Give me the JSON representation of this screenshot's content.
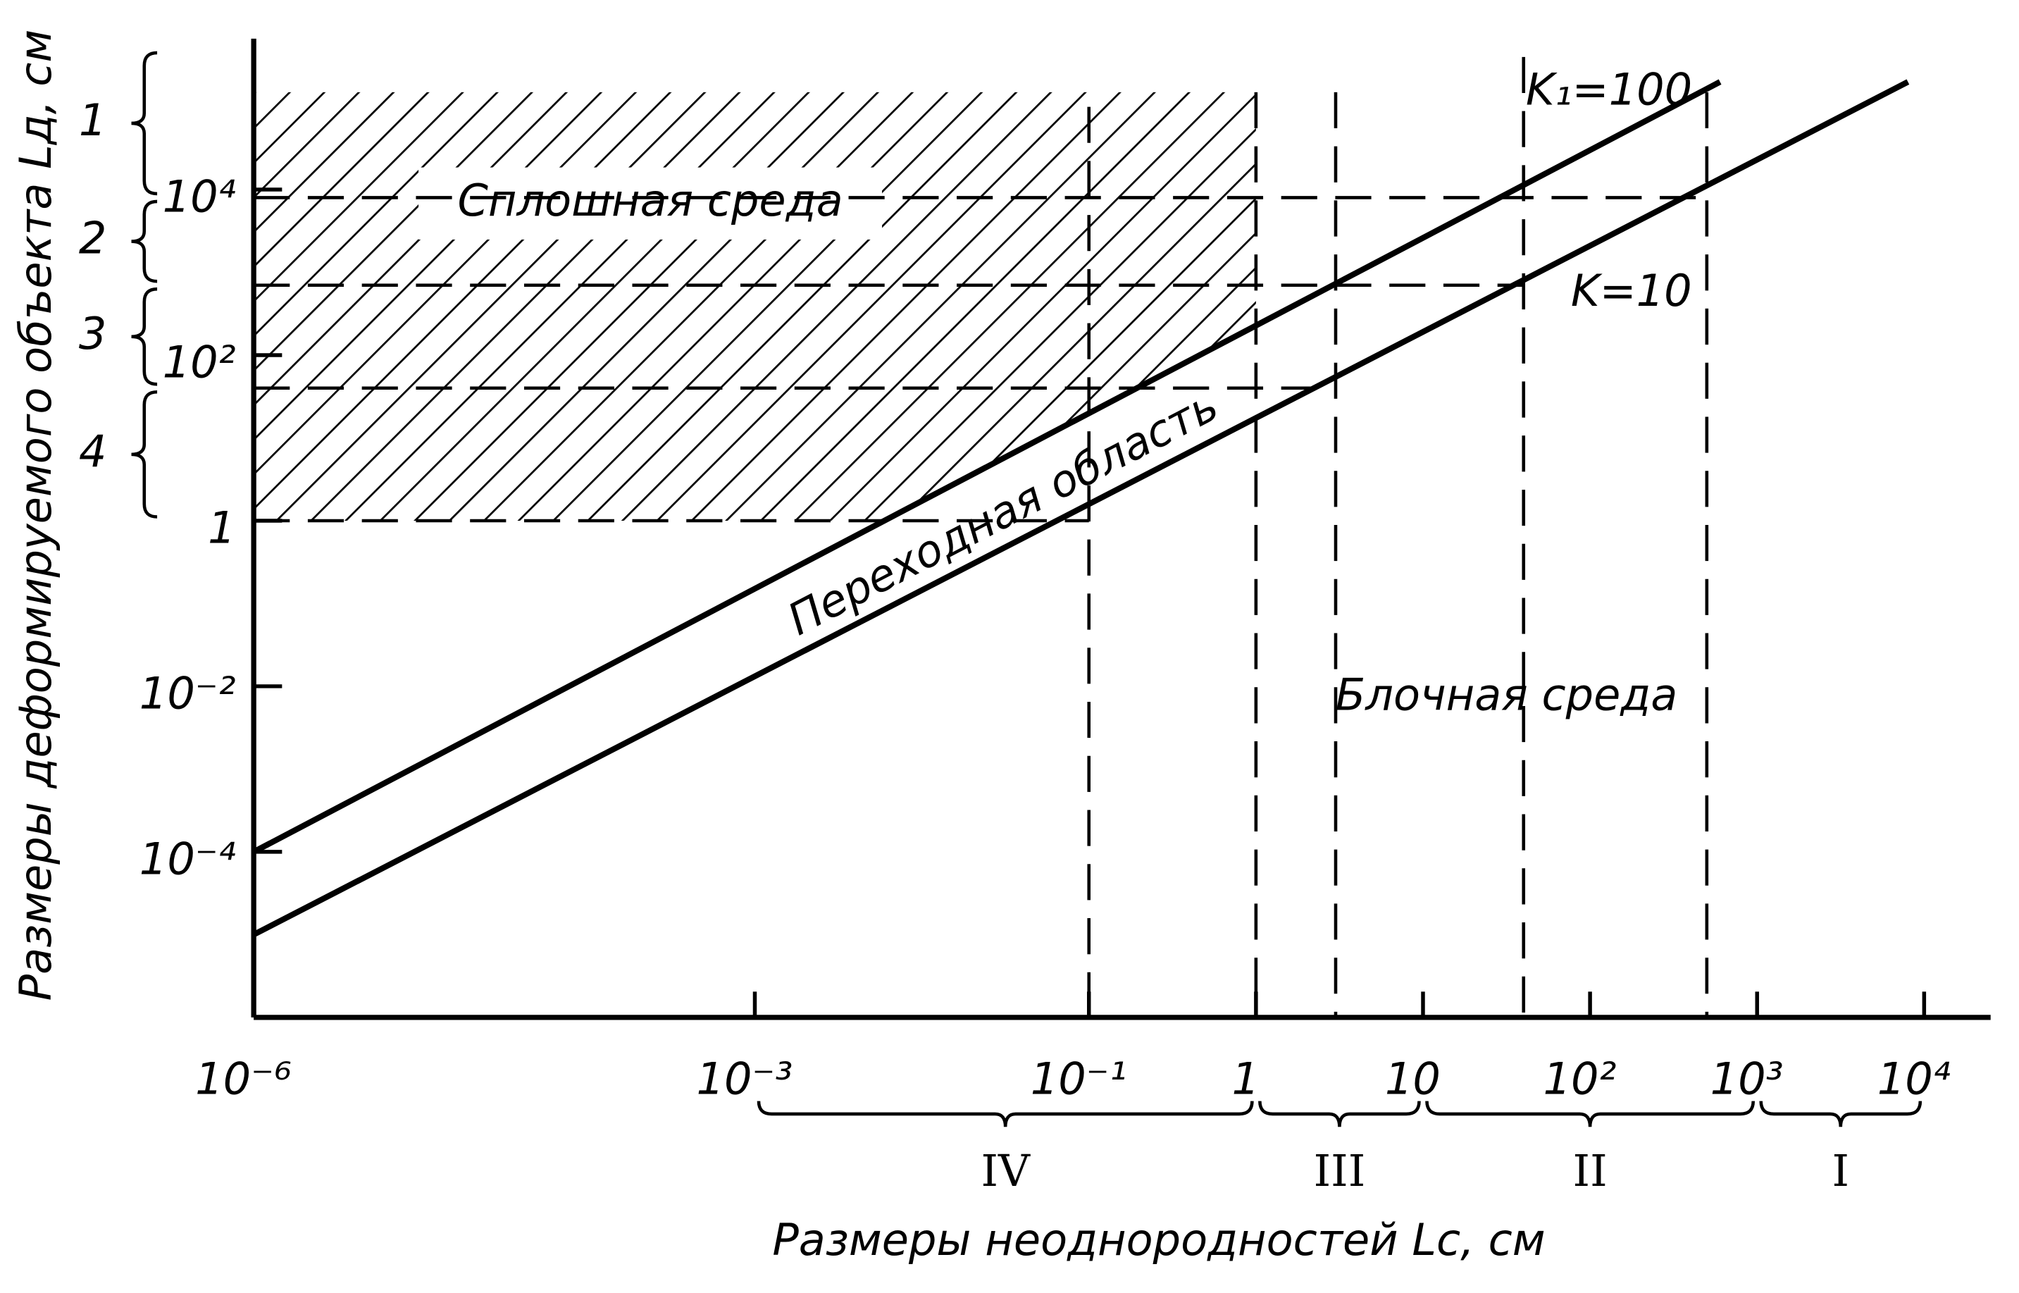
{
  "chart_data": {
    "type": "line",
    "xlabel": "Размеры неоднородностей Lc, см",
    "ylabel": "Размеры деформируемого объекта Lд, см",
    "xscale": "log",
    "yscale": "log",
    "xlim": [
      1e-06,
      25000
    ],
    "ylim": [
      1e-06,
      500000
    ],
    "xticks": [
      {
        "value": 1e-06,
        "label": "10⁻⁶"
      },
      {
        "value": 0.001,
        "label": "10⁻³"
      },
      {
        "value": 0.1,
        "label": "10⁻¹"
      },
      1,
      10,
      {
        "value": 100,
        "label": "10²"
      },
      {
        "value": 1000,
        "label": "10³"
      },
      {
        "value": 10000,
        "label": "10⁴"
      }
    ],
    "yticks": [
      {
        "value": 0.0001,
        "label": "10⁻⁴"
      },
      {
        "value": 0.01,
        "label": "10⁻²"
      },
      1,
      {
        "value": 100,
        "label": "10²"
      },
      {
        "value": 10000,
        "label": "10⁴"
      }
    ],
    "series": [
      {
        "name": "K₁=100",
        "color": "#000000",
        "x": [
          1e-06,
          600
        ],
        "values": [
          0.0001,
          200000
        ]
      },
      {
        "name": "K=10",
        "color": "#000000",
        "x": [
          1e-06,
          8000
        ],
        "values": [
          1e-05,
          200000
        ]
      }
    ],
    "hatched_region": {
      "label": "Сплошная среда",
      "x": [
        1e-06,
        1
      ],
      "y": [
        1,
        150000
      ]
    },
    "h_dashes": [
      {
        "y": 8000,
        "x": 500
      },
      {
        "y": 700,
        "x": 40
      },
      {
        "y": 40,
        "x": 3
      },
      {
        "y": 1,
        "x": 0.1
      }
    ],
    "v_dashes": [
      {
        "x": 0.1,
        "y": 100000
      },
      {
        "x": 1,
        "y": 150000
      },
      {
        "x": 3,
        "y": 150000
      },
      {
        "x": 40,
        "y": 400000
      },
      {
        "x": 500,
        "y": 150000
      }
    ],
    "y_zones": [
      {
        "label": "1",
        "range": [
          8000,
          500000
        ]
      },
      {
        "label": "2",
        "range": [
          700,
          8000
        ]
      },
      {
        "label": "3",
        "range": [
          40,
          700
        ]
      },
      {
        "label": "4",
        "range": [
          1,
          40
        ]
      }
    ],
    "x_zones": [
      {
        "label": "IV",
        "range": [
          0.001,
          1
        ]
      },
      {
        "label": "III",
        "range": [
          1,
          10
        ]
      },
      {
        "label": "II",
        "range": [
          10,
          1000
        ]
      },
      {
        "label": "I",
        "range": [
          1000,
          10000
        ]
      }
    ],
    "annotations": [
      "Переходная область",
      "Блочная среда"
    ]
  }
}
